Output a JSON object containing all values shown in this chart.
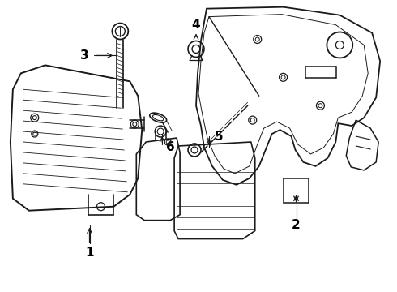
{
  "background_color": "#ffffff",
  "line_color": "#1a1a1a",
  "line_width": 1.3,
  "label_color": "#000000",
  "figsize": [
    4.9,
    3.6
  ],
  "dpi": 100
}
